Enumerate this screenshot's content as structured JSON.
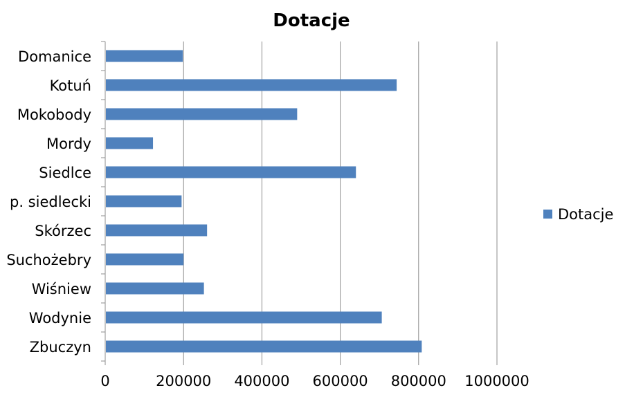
{
  "chart_data": {
    "type": "bar",
    "orientation": "horizontal",
    "title": "Dotacje",
    "categories": [
      "Domanice",
      "Kotuń",
      "Mokobody",
      "Mordy",
      "Siedlce",
      "p. siedlecki",
      "Skórzec",
      "Suchożebry",
      "Wiśniew",
      "Wodynie",
      "Zbuczyn"
    ],
    "series": [
      {
        "name": "Dotacje",
        "color": "#4F81BD",
        "values": [
          198000,
          744000,
          490000,
          122000,
          640000,
          195000,
          260000,
          200000,
          252000,
          706000,
          808000
        ]
      }
    ],
    "xlim": [
      0,
      1000000
    ],
    "xticks": [
      "0",
      "200000",
      "400000",
      "600000",
      "800000",
      "1000000"
    ],
    "xlabel": "",
    "ylabel": "",
    "grid": "vertical",
    "legend": "right"
  }
}
